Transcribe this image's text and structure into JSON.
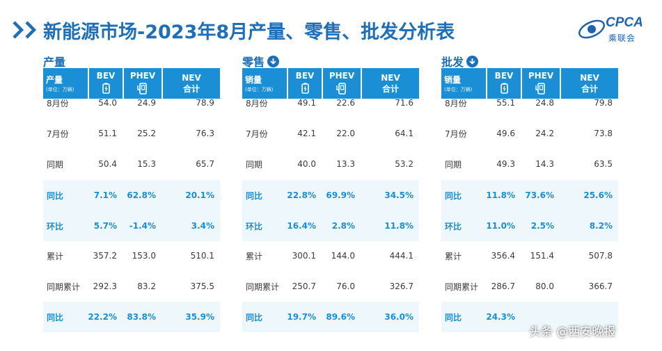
{
  "title": "新能源市场-2023年8月产量、零售、批发分析表",
  "logo": {
    "text": "CPCA",
    "cn": "乘联会"
  },
  "watermark": "头条 @西安晚报",
  "columns": {
    "bev": "BEV",
    "phev": "PHEV",
    "nev_line1": "NEV",
    "nev_line2": "合计",
    "unit": "(单位：万辆)"
  },
  "colors": {
    "primary": "#1c6fb8",
    "header_bg": "#1a8fd6",
    "highlight_text": "#1a8fd6",
    "highlight_row": "#eef7fc"
  },
  "sections": [
    {
      "name": "产量",
      "metric": "产量",
      "has_icon": false,
      "rows": [
        {
          "label": "8月份",
          "bev": "54.0",
          "phev": "24.9",
          "nev": "78.9",
          "hl": false
        },
        {
          "label": "7月份",
          "bev": "51.1",
          "phev": "25.2",
          "nev": "76.3",
          "hl": false
        },
        {
          "label": "同期",
          "bev": "50.4",
          "phev": "15.3",
          "nev": "65.7",
          "hl": false
        },
        {
          "label": "同比",
          "bev": "7.1%",
          "phev": "62.8%",
          "nev": "20.1%",
          "hl": true
        },
        {
          "label": "环比",
          "bev": "5.7%",
          "phev": "-1.4%",
          "nev": "3.4%",
          "hl": true
        },
        {
          "label": "累计",
          "bev": "357.2",
          "phev": "153.0",
          "nev": "510.1",
          "hl": false
        },
        {
          "label": "同期累计",
          "bev": "292.3",
          "phev": "83.2",
          "nev": "375.5",
          "hl": false
        },
        {
          "label": "同比",
          "bev": "22.2%",
          "phev": "83.8%",
          "nev": "35.9%",
          "hl": true
        }
      ]
    },
    {
      "name": "零售",
      "metric": "销量",
      "has_icon": true,
      "rows": [
        {
          "label": "8月份",
          "bev": "49.1",
          "phev": "22.6",
          "nev": "71.6",
          "hl": false
        },
        {
          "label": "7月份",
          "bev": "42.1",
          "phev": "22.0",
          "nev": "64.1",
          "hl": false
        },
        {
          "label": "同期",
          "bev": "40.0",
          "phev": "13.3",
          "nev": "53.2",
          "hl": false
        },
        {
          "label": "同比",
          "bev": "22.8%",
          "phev": "69.9%",
          "nev": "34.5%",
          "hl": true
        },
        {
          "label": "环比",
          "bev": "16.4%",
          "phev": "2.8%",
          "nev": "11.8%",
          "hl": true
        },
        {
          "label": "累计",
          "bev": "300.1",
          "phev": "144.0",
          "nev": "444.1",
          "hl": false
        },
        {
          "label": "同期累计",
          "bev": "250.7",
          "phev": "76.0",
          "nev": "326.7",
          "hl": false
        },
        {
          "label": "同比",
          "bev": "19.7%",
          "phev": "89.6%",
          "nev": "36.0%",
          "hl": true
        }
      ]
    },
    {
      "name": "批发",
      "metric": "销量",
      "has_icon": true,
      "rows": [
        {
          "label": "8月份",
          "bev": "55.1",
          "phev": "24.8",
          "nev": "79.8",
          "hl": false
        },
        {
          "label": "7月份",
          "bev": "49.6",
          "phev": "24.2",
          "nev": "73.8",
          "hl": false
        },
        {
          "label": "同期",
          "bev": "49.3",
          "phev": "14.3",
          "nev": "63.5",
          "hl": false
        },
        {
          "label": "同比",
          "bev": "11.8%",
          "phev": "73.6%",
          "nev": "25.6%",
          "hl": true
        },
        {
          "label": "环比",
          "bev": "11.0%",
          "phev": "2.5%",
          "nev": "8.2%",
          "hl": true
        },
        {
          "label": "累计",
          "bev": "356.4",
          "phev": "151.4",
          "nev": "507.8",
          "hl": false
        },
        {
          "label": "同期累计",
          "bev": "286.7",
          "phev": "80.0",
          "nev": "366.7",
          "hl": false
        },
        {
          "label": "同比",
          "bev": "24.3%",
          "phev": "",
          "nev": "",
          "hl": true
        }
      ]
    }
  ]
}
